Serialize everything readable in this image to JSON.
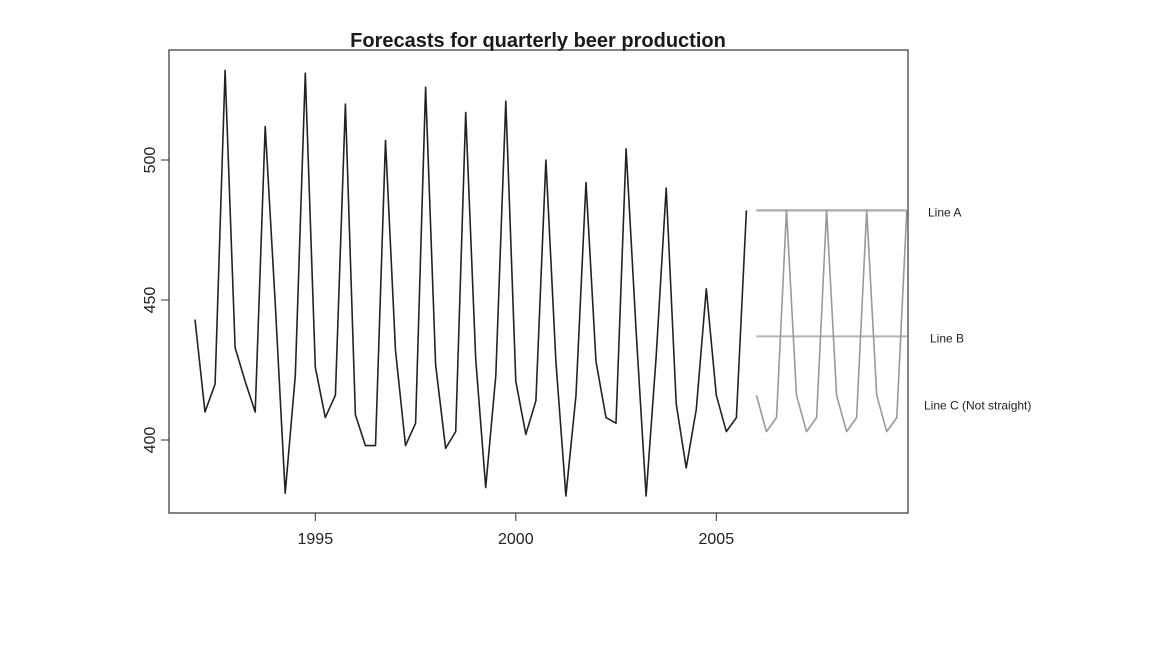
{
  "chart_data": {
    "type": "line",
    "title": "Forecasts for quarterly beer production",
    "xlabel": "",
    "ylabel": "",
    "xlim": [
      1991.75,
      2009.75
    ],
    "ylim": [
      373,
      538
    ],
    "x_ticks": [
      1995,
      2000,
      2005
    ],
    "y_ticks": [
      400,
      450,
      500
    ],
    "grid": false,
    "series": [
      {
        "x": [
          1992.0,
          1992.25,
          1992.5,
          1992.75,
          1993.0,
          1993.25,
          1993.5,
          1993.75,
          1994.0,
          1994.25,
          1994.5,
          1994.75,
          1995.0,
          1995.25,
          1995.5,
          1995.75,
          1996.0,
          1996.25,
          1996.5,
          1996.75,
          1997.0,
          1997.25,
          1997.5,
          1997.75,
          1998.0,
          1998.25,
          1998.5,
          1998.75,
          1999.0,
          1999.25,
          1999.5,
          1999.75,
          2000.0,
          2000.25,
          2000.5,
          2000.75,
          2001.0,
          2001.25,
          2001.5,
          2001.75,
          2002.0,
          2002.25,
          2002.5,
          2002.75,
          2003.0,
          2003.25,
          2003.5,
          2003.75,
          2004.0,
          2004.25,
          2004.5,
          2004.75,
          2005.0,
          2005.25,
          2005.5,
          2005.75
        ],
        "values": [
          443,
          410,
          420,
          532,
          433,
          421,
          410,
          512,
          449,
          381,
          423,
          531,
          426,
          408,
          416,
          520,
          409,
          398,
          398,
          507,
          432,
          398,
          406,
          526,
          427,
          397,
          403,
          517,
          429,
          383,
          423,
          521,
          421,
          402,
          414,
          500,
          428,
          380,
          416,
          492,
          428,
          408,
          406,
          504,
          439,
          380,
          430,
          490,
          413,
          390,
          411,
          454,
          416,
          403,
          408,
          482
        ],
        "color": "#222222"
      },
      {
        "x": [
          2006.0,
          2006.25,
          2006.5,
          2006.75,
          2007.0,
          2007.25,
          2007.5,
          2007.75,
          2008.0,
          2008.25,
          2008.5,
          2008.75,
          2009.0,
          2009.25,
          2009.5,
          2009.75
        ],
        "values": [
          416,
          403,
          408,
          482,
          416,
          403,
          408,
          482,
          416,
          403,
          408,
          482,
          416,
          403,
          408,
          482
        ],
        "color": "#999999"
      }
    ],
    "reference_lines": [
      {
        "label": "Line A",
        "y": 482,
        "x_start": 2006.0,
        "x_end": 2009.75,
        "color": "#b3b3b3"
      },
      {
        "label": "Line B",
        "y": 437,
        "x_start": 2006.0,
        "x_end": 2009.75,
        "color": "#b3b3b3"
      }
    ],
    "annotations": [
      {
        "text": "Line A",
        "y": 481
      },
      {
        "text": "Line B",
        "y": 436
      },
      {
        "text": "Line C (Not straight)",
        "y": 412
      }
    ]
  }
}
